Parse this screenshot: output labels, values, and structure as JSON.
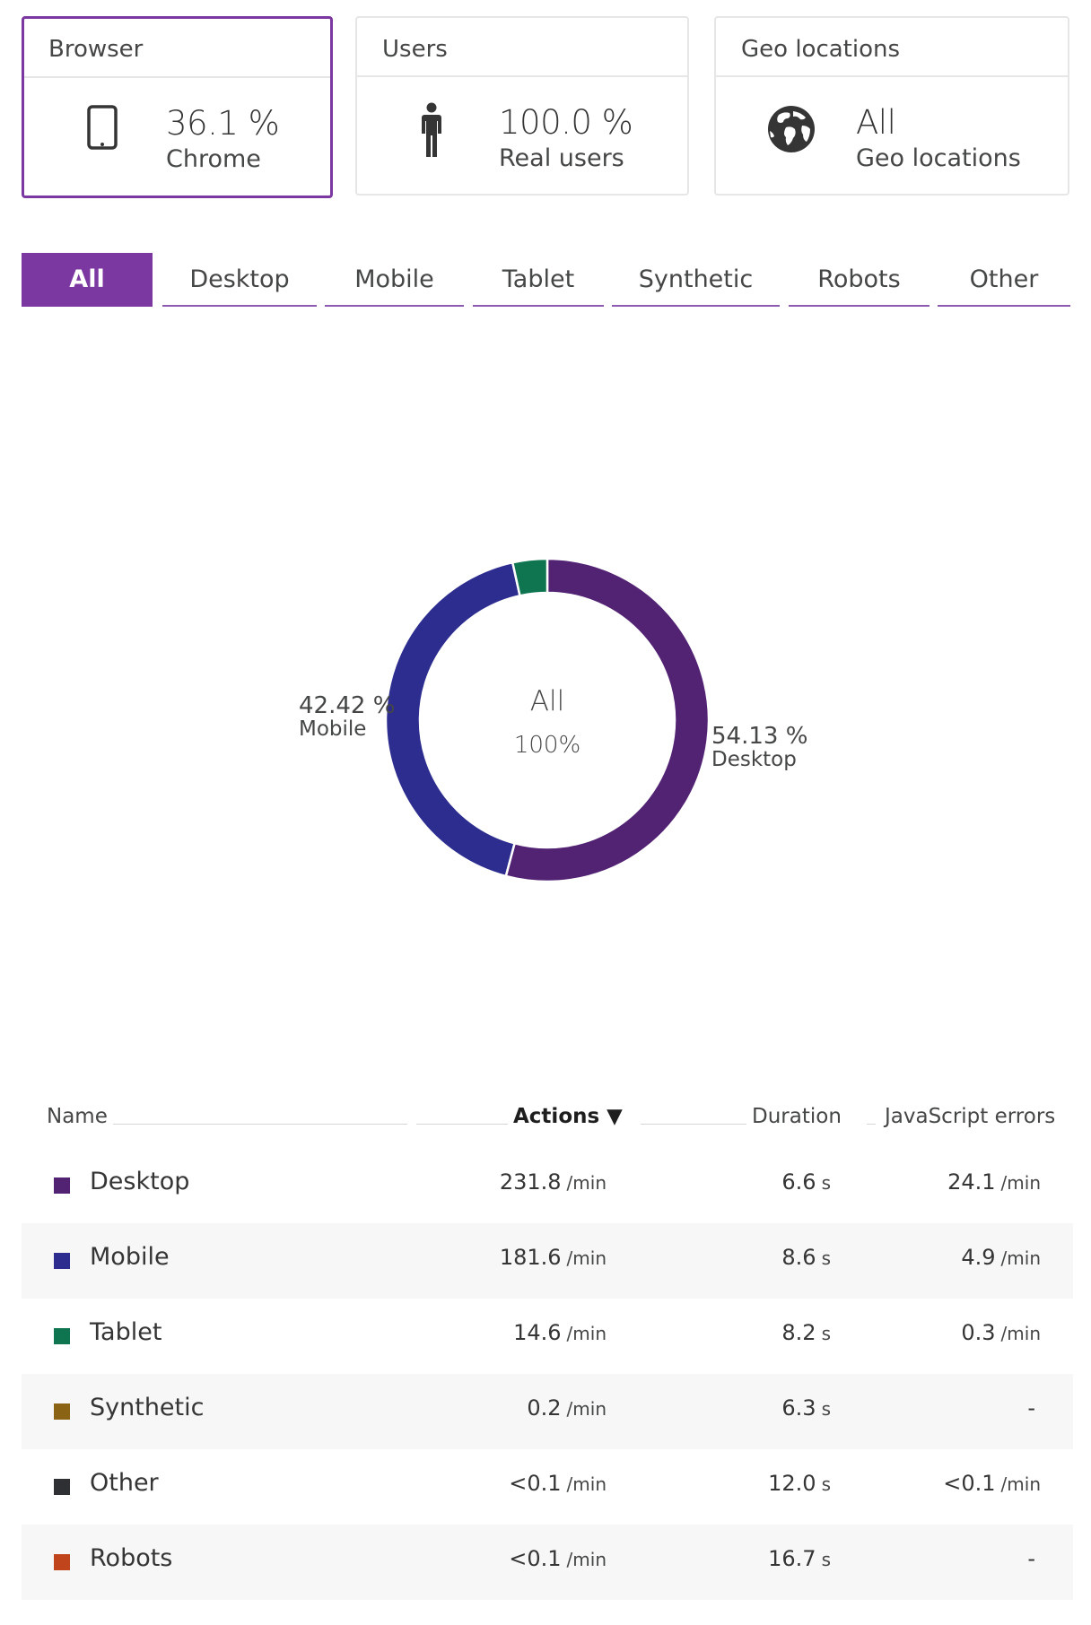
{
  "cards": {
    "browser": {
      "title": "Browser",
      "icon": "mobile-phone-icon",
      "value": "36.1 %",
      "sub": "Chrome"
    },
    "users": {
      "title": "Users",
      "icon": "person-icon",
      "value": "100.0 %",
      "sub": "Real users"
    },
    "geo": {
      "title": "Geo locations",
      "icon": "globe-icon",
      "value": "All",
      "sub": "Geo locations"
    }
  },
  "tabs": [
    "All",
    "Desktop",
    "Mobile",
    "Tablet",
    "Synthetic",
    "Robots",
    "Other"
  ],
  "active_tab": "All",
  "colors": {
    "accent": "#7c38a1",
    "Desktop": "#522273",
    "Mobile": "#2c2d8e",
    "Tablet": "#0f7550",
    "Synthetic": "#8a6414",
    "Other": "#2f3034",
    "Robots": "#c1451c"
  },
  "chart_data": {
    "type": "pie",
    "style": "donut",
    "center_title": "All",
    "center_value": "100%",
    "slices": [
      {
        "name": "Desktop",
        "value": 54.13,
        "label": "54.13 %"
      },
      {
        "name": "Mobile",
        "value": 42.42,
        "label": "42.42 %"
      },
      {
        "name": "Tablet",
        "value": 3.45,
        "label": ""
      }
    ]
  },
  "table": {
    "headers": {
      "name": "Name",
      "actions": "Actions ▼",
      "duration": "Duration",
      "js_errors": "JavaScript errors"
    },
    "rows": [
      {
        "name": "Desktop",
        "actions": "231.8",
        "actions_unit": "/min",
        "duration": "6.6",
        "duration_unit": "s",
        "js": "24.1",
        "js_unit": "/min"
      },
      {
        "name": "Mobile",
        "actions": "181.6",
        "actions_unit": "/min",
        "duration": "8.6",
        "duration_unit": "s",
        "js": "4.9",
        "js_unit": "/min"
      },
      {
        "name": "Tablet",
        "actions": "14.6",
        "actions_unit": "/min",
        "duration": "8.2",
        "duration_unit": "s",
        "js": "0.3",
        "js_unit": "/min"
      },
      {
        "name": "Synthetic",
        "actions": "0.2",
        "actions_unit": "/min",
        "duration": "6.3",
        "duration_unit": "s",
        "js": "-",
        "js_unit": ""
      },
      {
        "name": "Other",
        "actions": "<0.1",
        "actions_unit": "/min",
        "duration": "12.0",
        "duration_unit": "s",
        "js": "<0.1",
        "js_unit": "/min"
      },
      {
        "name": "Robots",
        "actions": "<0.1",
        "actions_unit": "/min",
        "duration": "16.7",
        "duration_unit": "s",
        "js": "-",
        "js_unit": ""
      }
    ]
  }
}
